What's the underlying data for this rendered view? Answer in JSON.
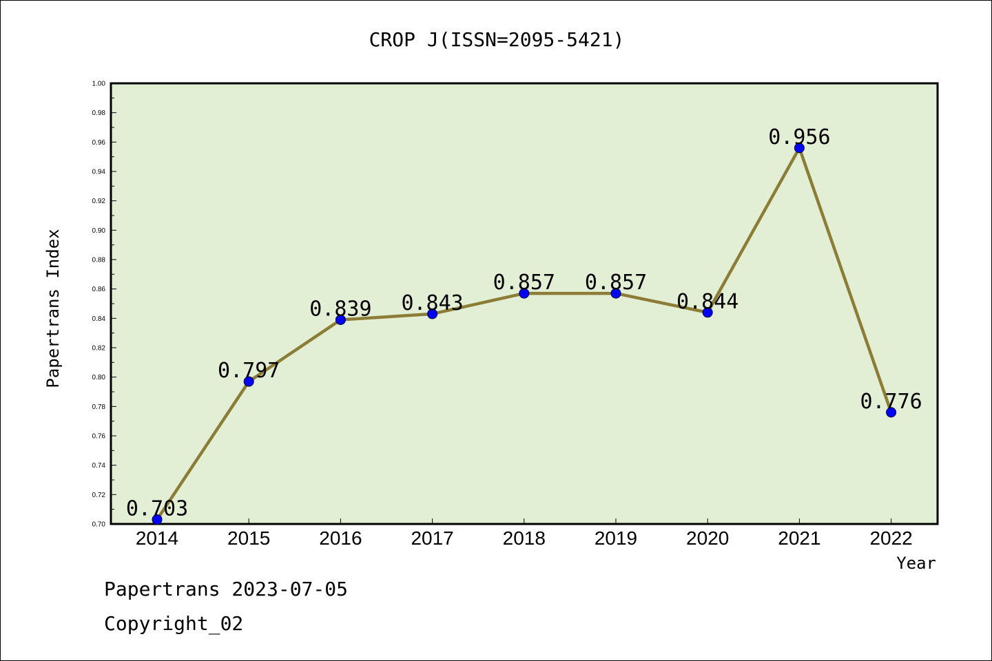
{
  "chart_data": {
    "type": "line",
    "title": "CROP J(ISSN=2095-5421)",
    "xlabel": "Year",
    "ylabel": "Papertrans Index",
    "x": [
      "2014",
      "2015",
      "2016",
      "2017",
      "2018",
      "2019",
      "2020",
      "2021",
      "2022"
    ],
    "series": [
      {
        "values": [
          0.703,
          0.797,
          0.839,
          0.843,
          0.857,
          0.857,
          0.844,
          0.956,
          0.776
        ]
      }
    ],
    "data_labels": [
      "0.703",
      "0.797",
      "0.839",
      "0.843",
      "0.857",
      "0.857",
      "0.844",
      "0.956",
      "0.776"
    ],
    "ylim": [
      0.7,
      1.0
    ],
    "yticks": [
      "0.70",
      "0.72",
      "0.74",
      "0.76",
      "0.78",
      "0.80",
      "0.82",
      "0.84",
      "0.86",
      "0.88",
      "0.90",
      "0.92",
      "0.94",
      "0.96",
      "0.98",
      "1.00"
    ],
    "grid": false,
    "legend": "none"
  },
  "footer": {
    "line1": "Papertrans 2023-07-05",
    "line2": "Copyright_02"
  },
  "colors": {
    "plot_background": "#e2efd4",
    "line": "#8c7d36",
    "marker_fill": "#0000ff",
    "marker_edge": "#000033",
    "axes": "#000000"
  }
}
